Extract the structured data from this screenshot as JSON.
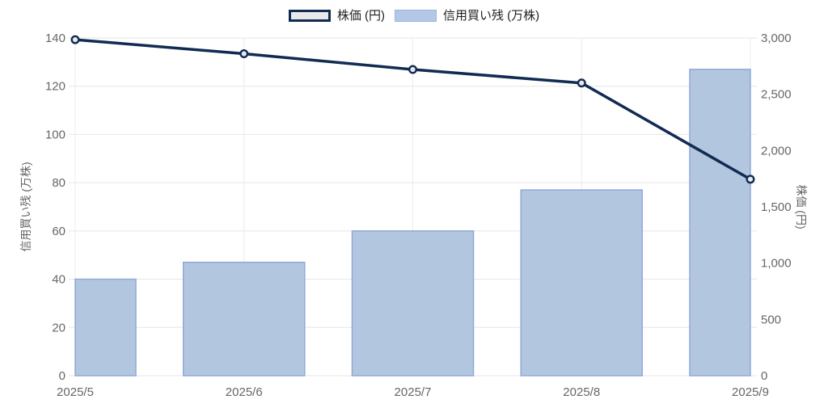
{
  "chart_data": {
    "type": "combo_bar_line",
    "categories": [
      "2025/5",
      "2025/6",
      "2025/7",
      "2025/8",
      "2025/9"
    ],
    "series": [
      {
        "name": "株価 (円)",
        "type": "line",
        "axis": "right",
        "values": [
          2985,
          2860,
          2720,
          2600,
          1745
        ],
        "color": "#112b52",
        "marker_fill": "#e8e9ed"
      },
      {
        "name": "信用買い残 (万株)",
        "type": "bar",
        "axis": "left",
        "values": [
          40,
          47,
          60,
          77,
          127
        ],
        "fill": "#b3c6e0",
        "border": "#8fa9d6"
      }
    ],
    "left_axis": {
      "title": "信用買い残 (万株)",
      "min": 0,
      "max": 140,
      "tick_values": [
        0,
        20,
        40,
        60,
        80,
        100,
        120,
        140
      ],
      "tick_labels": [
        "0",
        "20",
        "40",
        "60",
        "80",
        "100",
        "120",
        "140"
      ]
    },
    "right_axis": {
      "title": "株価 (円)",
      "min": 0,
      "max": 3000,
      "tick_values": [
        0,
        500,
        1000,
        1500,
        2000,
        2500,
        3000
      ],
      "tick_labels": [
        "0",
        "500",
        "1,000",
        "1,500",
        "2,000",
        "2,500",
        "3,000"
      ]
    },
    "legend": [
      {
        "label": "株価 (円)"
      },
      {
        "label": "信用買い残 (万株)"
      }
    ],
    "grid": true,
    "legend_position": "top"
  }
}
